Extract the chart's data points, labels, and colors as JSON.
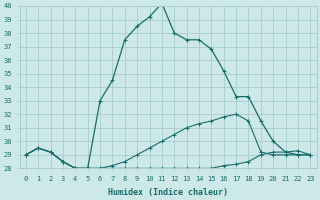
{
  "xlabel": "Humidex (Indice chaleur)",
  "bg_color": "#cce8e8",
  "grid_color": "#aacccc",
  "line_color": "#1a6b6b",
  "x_hours": [
    0,
    1,
    2,
    3,
    4,
    5,
    6,
    7,
    8,
    9,
    10,
    11,
    12,
    13,
    14,
    15,
    16,
    17,
    18,
    19,
    20,
    21,
    22,
    23
  ],
  "line1_y": [
    29.0,
    29.5,
    29.2,
    28.5,
    28.0,
    28.0,
    28.0,
    28.2,
    28.5,
    29.0,
    29.5,
    30.0,
    30.5,
    31.0,
    31.3,
    31.5,
    31.8,
    32.0,
    31.5,
    29.2,
    29.0,
    29.0,
    29.0,
    29.0
  ],
  "line2_y": [
    29.0,
    29.5,
    29.2,
    28.5,
    28.0,
    28.0,
    28.0,
    28.0,
    28.0,
    28.0,
    28.0,
    28.0,
    28.0,
    28.0,
    28.0,
    28.0,
    28.2,
    28.3,
    28.5,
    29.0,
    29.2,
    29.2,
    29.3,
    29.0
  ],
  "line3_y": [
    29.0,
    29.5,
    29.2,
    28.5,
    28.0,
    28.0,
    33.0,
    34.5,
    37.5,
    38.5,
    39.2,
    40.2,
    38.0,
    37.5,
    37.5,
    36.8,
    35.2,
    33.3,
    33.3,
    31.5,
    30.0,
    29.2,
    29.0,
    29.0
  ],
  "xlim": [
    -0.5,
    23.5
  ],
  "ylim": [
    28,
    40
  ],
  "yticks": [
    28,
    29,
    30,
    31,
    32,
    33,
    34,
    35,
    36,
    37,
    38,
    39,
    40
  ],
  "xticks": [
    0,
    1,
    2,
    3,
    4,
    5,
    6,
    7,
    8,
    9,
    10,
    11,
    12,
    13,
    14,
    15,
    16,
    17,
    18,
    19,
    20,
    21,
    22,
    23
  ]
}
